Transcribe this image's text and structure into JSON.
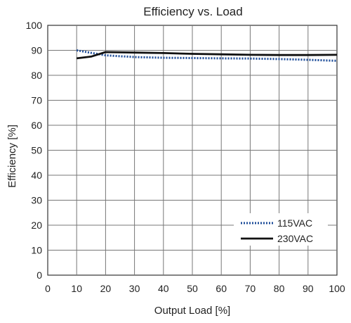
{
  "chart_data": {
    "type": "line",
    "title": "Efficiency vs. Load",
    "xlabel": "Output Load [%]",
    "ylabel": "Efficiency [%]",
    "xlim": [
      0,
      100
    ],
    "ylim": [
      0,
      100
    ],
    "xticks": [
      0,
      10,
      20,
      30,
      40,
      50,
      60,
      70,
      80,
      90,
      100
    ],
    "yticks": [
      0,
      10,
      20,
      30,
      40,
      50,
      60,
      70,
      80,
      90,
      100
    ],
    "grid": true,
    "legend_position": "bottom-right",
    "series": [
      {
        "name": "115VAC",
        "color": "#1f4e9a",
        "style": "dotted",
        "x": [
          10,
          15,
          20,
          30,
          40,
          50,
          60,
          70,
          80,
          90,
          100
        ],
        "y": [
          90,
          89,
          88,
          87.3,
          87,
          86.9,
          86.8,
          86.7,
          86.5,
          86.2,
          85.8
        ]
      },
      {
        "name": "230VAC",
        "color": "#111111",
        "style": "solid",
        "x": [
          10,
          15,
          20,
          30,
          40,
          50,
          60,
          70,
          80,
          90,
          100
        ],
        "y": [
          86.8,
          87.5,
          89.3,
          89.1,
          88.9,
          88.6,
          88.4,
          88.2,
          88.1,
          88.1,
          88.2
        ]
      }
    ]
  }
}
